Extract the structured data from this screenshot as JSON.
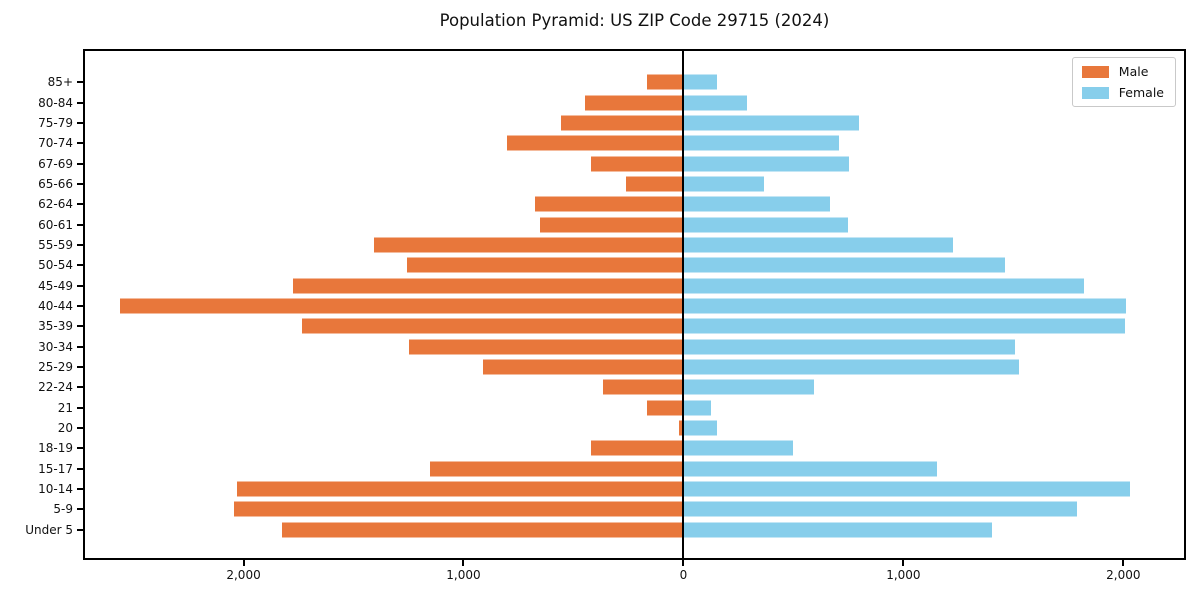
{
  "title": "Population Pyramid: US ZIP Code 29715 (2024)",
  "legend": {
    "male_label": "Male",
    "female_label": "Female"
  },
  "colors": {
    "male": "#E8773B",
    "female": "#87CEEB",
    "axis": "#000000"
  },
  "chart_data": {
    "type": "bar",
    "orientation": "horizontal-pyramid",
    "title": "Population Pyramid: US ZIP Code 29715 (2024)",
    "categories": [
      "85+",
      "80-84",
      "75-79",
      "70-74",
      "67-69",
      "65-66",
      "62-64",
      "60-61",
      "55-59",
      "50-54",
      "45-49",
      "40-44",
      "35-39",
      "30-34",
      "25-29",
      "22-24",
      "21",
      "20",
      "18-19",
      "15-17",
      "10-14",
      "5-9",
      "Under 5"
    ],
    "series": [
      {
        "name": "Male",
        "side": "left",
        "color": "#E8773B",
        "values": [
          165,
          450,
          560,
          805,
          420,
          260,
          675,
          655,
          1410,
          1260,
          1780,
          2570,
          1740,
          1250,
          915,
          365,
          165,
          18,
          420,
          1155,
          2035,
          2050,
          1830
        ]
      },
      {
        "name": "Female",
        "side": "right",
        "color": "#87CEEB",
        "values": [
          155,
          290,
          800,
          710,
          755,
          370,
          670,
          750,
          1230,
          1470,
          1830,
          2020,
          2015,
          1515,
          1530,
          595,
          125,
          155,
          500,
          1160,
          2040,
          1795,
          1410
        ]
      }
    ],
    "x_ticks": [
      {
        "value": -2000,
        "label": "2,000"
      },
      {
        "value": -1000,
        "label": "1,000"
      },
      {
        "value": 0,
        "label": "0"
      },
      {
        "value": 1000,
        "label": "1,000"
      },
      {
        "value": 2000,
        "label": "2,000"
      }
    ],
    "xlim": [
      -2730,
      2285
    ],
    "grid": false,
    "legend_position": "upper right"
  }
}
